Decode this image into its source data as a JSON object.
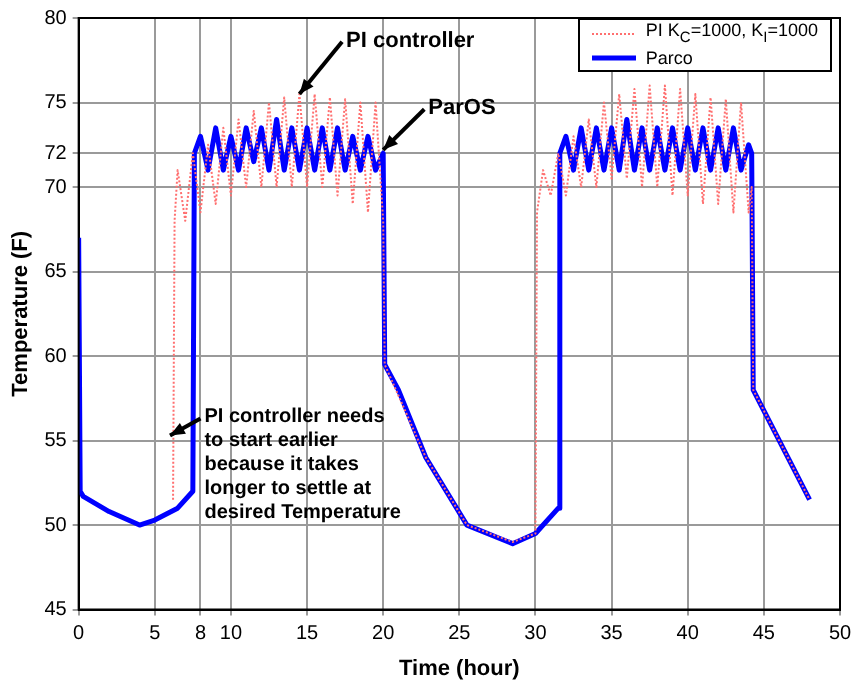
{
  "chart_data": {
    "type": "line",
    "xlabel": "Time (hour)",
    "ylabel": "Temperature (F)",
    "xlim": [
      0,
      50
    ],
    "xticks": [
      0,
      5,
      8,
      10,
      15,
      20,
      25,
      30,
      35,
      40,
      45,
      50
    ],
    "ylim": [
      45,
      80
    ],
    "yticks": [
      45,
      50,
      55,
      60,
      65,
      70,
      72,
      75,
      80
    ],
    "grid": true,
    "legend": "top right",
    "marker": "none",
    "series": [
      {
        "name": "PI K$_{C}$=1000, K$_{I}$=1000",
        "color": "#ff6f6f",
        "line_style": "dotted",
        "x": [
          6.2,
          6.3,
          6.5,
          7,
          7.5,
          8,
          8.5,
          9,
          9.5,
          10,
          10.5,
          11,
          11.5,
          12,
          12.5,
          13,
          13.5,
          14,
          14.5,
          15,
          15.5,
          16,
          16.5,
          17,
          17.5,
          18,
          18.5,
          19,
          19.5,
          20,
          20.1,
          22.8,
          25.5,
          28.5,
          30,
          30.1,
          30.5,
          31,
          31.5,
          32,
          32.5,
          33,
          33.5,
          34,
          34.5,
          35,
          35.5,
          36,
          36.5,
          37,
          37.5,
          38,
          38.5,
          39,
          39.5,
          40,
          40.5,
          41,
          41.5,
          42,
          42.5,
          43,
          43.5,
          44,
          44.2,
          44.3,
          48
        ],
        "values": [
          51.5,
          68,
          71,
          68,
          72,
          68.5,
          72.5,
          69,
          73.5,
          69.5,
          74,
          70,
          74.5,
          70,
          75,
          70,
          75.3,
          70,
          75.5,
          70,
          75.5,
          70,
          75.3,
          69.5,
          75.2,
          69,
          75,
          68.5,
          75,
          68,
          59.5,
          54,
          50,
          49,
          49.5,
          68.5,
          71,
          69.5,
          72,
          69.5,
          73,
          70,
          74,
          70,
          75,
          70.5,
          75.5,
          70.5,
          75.8,
          70,
          76,
          70,
          76,
          69.5,
          75.8,
          69.5,
          75.5,
          69,
          75.3,
          69,
          75.2,
          68.5,
          75,
          68.5,
          70,
          58,
          51.5
        ]
      },
      {
        "name": "Parco",
        "color": "#0000ff",
        "line_style": "solid",
        "x": [
          0,
          0.1,
          0.3,
          2,
          4,
          5,
          6.5,
          7.5,
          7.6,
          8,
          8.5,
          9,
          9.5,
          10,
          10.5,
          11,
          11.5,
          12,
          12.5,
          13,
          13.5,
          14,
          14.5,
          15,
          15.5,
          16,
          16.5,
          17,
          17.5,
          18,
          18.5,
          19,
          19.5,
          20,
          20.1,
          21,
          22.8,
          25.5,
          28.5,
          30,
          31.5,
          31.6,
          32,
          32.5,
          33,
          33.5,
          34,
          34.5,
          35,
          35.5,
          36,
          36.5,
          37,
          37.5,
          38,
          38.5,
          39,
          39.5,
          40,
          40.5,
          41,
          41.5,
          42,
          42.5,
          43,
          43.5,
          44,
          44.2,
          44.3,
          48
        ],
        "values": [
          67,
          52,
          51.7,
          50.8,
          50,
          50.3,
          51,
          52,
          72,
          73,
          71,
          73.5,
          71,
          73,
          71,
          73.5,
          71.5,
          73.5,
          71,
          74,
          71,
          73.5,
          71,
          73.5,
          71,
          73.5,
          71,
          73.5,
          71,
          73,
          71,
          73,
          71,
          72,
          59.5,
          58,
          54,
          50,
          48.9,
          49.5,
          51,
          72,
          73,
          71,
          73.5,
          71,
          73.5,
          71,
          73.5,
          71,
          74,
          71,
          73.5,
          71,
          73.5,
          71,
          73.5,
          71,
          73.5,
          71,
          73.5,
          71,
          73.5,
          71,
          73.5,
          71,
          72.5,
          72,
          58,
          51.5
        ]
      }
    ],
    "annotations": [
      {
        "text": "PI controller",
        "x": 14.5,
        "y": 75.5
      },
      {
        "text": "ParOS",
        "x": 20,
        "y": 72.2
      },
      {
        "text": "PI controller needs to start earlier because it takes longer to settle at desired Temperature",
        "x": 6,
        "y": 55.3
      }
    ]
  }
}
